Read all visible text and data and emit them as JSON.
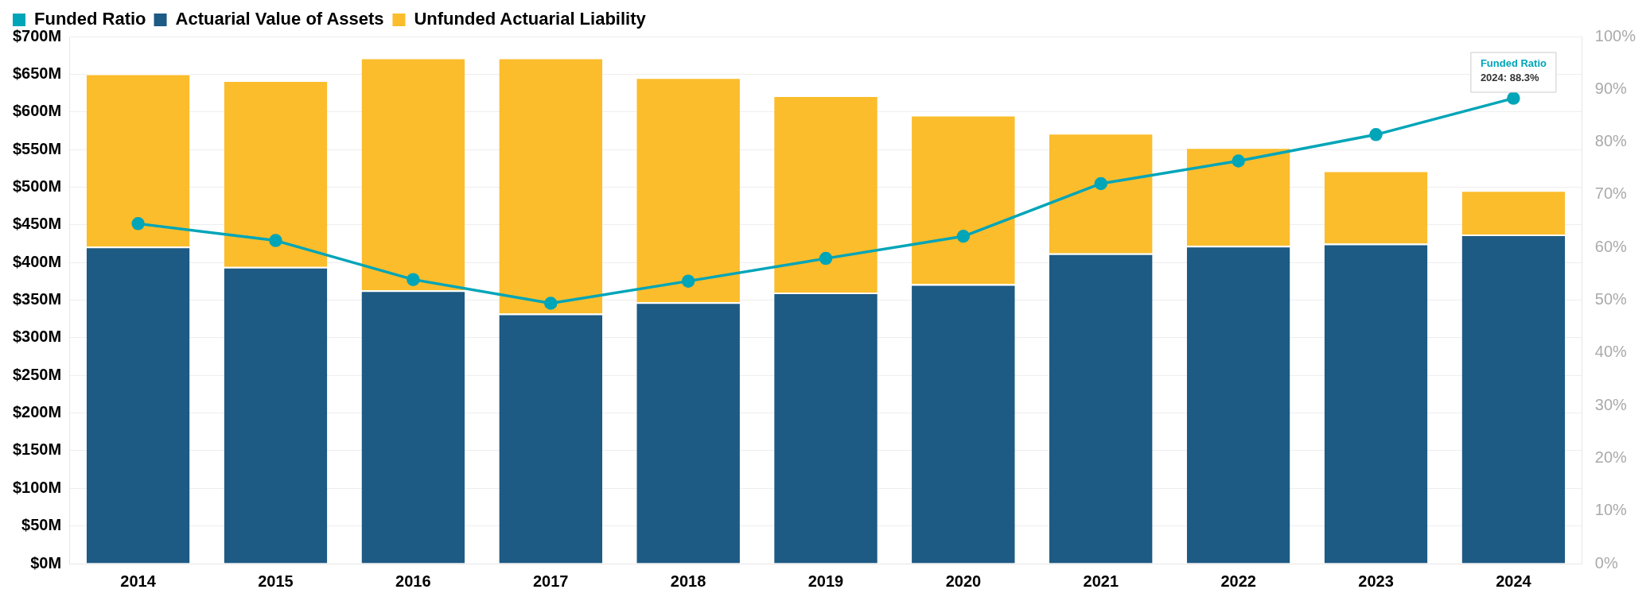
{
  "chart_data": {
    "type": "bar",
    "stacked": true,
    "legend": "top left",
    "grid": "y",
    "marker": "circle",
    "categories": [
      "2014",
      "2015",
      "2016",
      "2017",
      "2018",
      "2019",
      "2020",
      "2021",
      "2022",
      "2023",
      "2024"
    ],
    "series": [
      {
        "name": "Funded Ratio",
        "type": "line",
        "axis": "y2",
        "color": "#00a5b8",
        "values": [
          64.5,
          61.3,
          53.9,
          49.4,
          53.6,
          57.9,
          62.1,
          72.1,
          76.4,
          81.4,
          88.3
        ]
      },
      {
        "name": "Actuarial Value of Assets",
        "color": "#1d5a84",
        "values": [
          421,
          394,
          363,
          332,
          347,
          360,
          371,
          412,
          422,
          425,
          437
        ]
      },
      {
        "name": "Unfunded Actuarial Liability",
        "color": "#fbbd2c",
        "values": [
          230,
          248,
          309,
          340,
          299,
          262,
          225,
          160,
          131,
          97,
          59
        ]
      }
    ],
    "ylim": [
      0,
      700
    ],
    "yticks": [
      {
        "value": 0,
        "label": "$0M"
      },
      {
        "value": 50,
        "label": "$50M"
      },
      {
        "value": 100,
        "label": "$100M"
      },
      {
        "value": 150,
        "label": "$150M"
      },
      {
        "value": 200,
        "label": "$200M"
      },
      {
        "value": 250,
        "label": "$250M"
      },
      {
        "value": 300,
        "label": "$300M"
      },
      {
        "value": 350,
        "label": "$350M"
      },
      {
        "value": 400,
        "label": "$400M"
      },
      {
        "value": 450,
        "label": "$450M"
      },
      {
        "value": 500,
        "label": "$500M"
      },
      {
        "value": 550,
        "label": "$550M"
      },
      {
        "value": 600,
        "label": "$600M"
      },
      {
        "value": 650,
        "label": "$650M"
      },
      {
        "value": 700,
        "label": "$700M"
      }
    ],
    "y2lim": [
      0,
      100
    ],
    "y2ticks": [
      {
        "value": 0,
        "label": "0%"
      },
      {
        "value": 10,
        "label": "10%"
      },
      {
        "value": 20,
        "label": "20%"
      },
      {
        "value": 30,
        "label": "30%"
      },
      {
        "value": 40,
        "label": "40%"
      },
      {
        "value": 50,
        "label": "50%"
      },
      {
        "value": 60,
        "label": "60%"
      },
      {
        "value": 70,
        "label": "70%"
      },
      {
        "value": 80,
        "label": "80%"
      },
      {
        "value": 90,
        "label": "90%"
      },
      {
        "value": 100,
        "label": "100%"
      }
    ],
    "annotations": [
      "Funded Ratio\n2024: 88.3%"
    ]
  }
}
